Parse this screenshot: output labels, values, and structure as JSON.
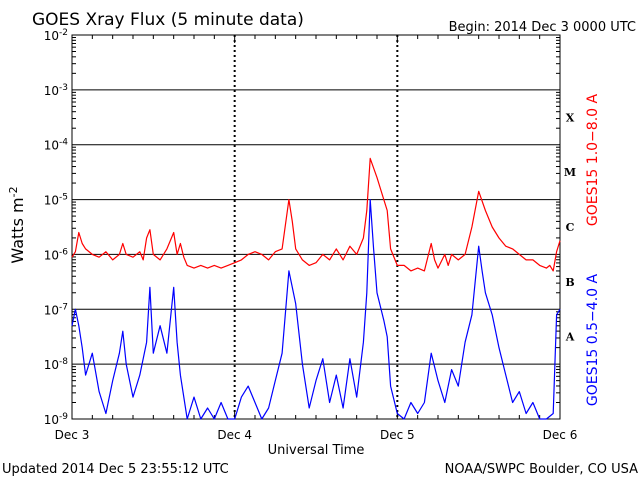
{
  "chart_data": {
    "type": "line",
    "title": "GOES Xray Flux (5 minute data)",
    "begin_label": "Begin:  2014 Dec 3 0000 UTC",
    "xlabel": "Universal Time",
    "ylabel": "Watts m",
    "ylabel_exp": "-2",
    "x_range_hours": [
      0,
      72
    ],
    "x_ticks": [
      {
        "hour": 0,
        "label": "Dec 3"
      },
      {
        "hour": 24,
        "label": "Dec 4"
      },
      {
        "hour": 48,
        "label": "Dec 5"
      },
      {
        "hour": 72,
        "label": "Dec 6"
      }
    ],
    "y_scale": "log",
    "ylim_exp": [
      -9,
      -2
    ],
    "y_ticks": [
      {
        "exp": -2,
        "label": "10",
        "sup": "-2"
      },
      {
        "exp": -3,
        "label": "10",
        "sup": "-3"
      },
      {
        "exp": -4,
        "label": "10",
        "sup": "-4"
      },
      {
        "exp": -5,
        "label": "10",
        "sup": "-5"
      },
      {
        "exp": -6,
        "label": "10",
        "sup": "-6"
      },
      {
        "exp": -7,
        "label": "10",
        "sup": "-7"
      },
      {
        "exp": -8,
        "label": "10",
        "sup": "-8"
      },
      {
        "exp": -9,
        "label": "10",
        "sup": "-9"
      }
    ],
    "flare_classes": [
      {
        "label": "X",
        "exp": -3.5
      },
      {
        "label": "M",
        "exp": -4.5
      },
      {
        "label": "C",
        "exp": -5.5
      },
      {
        "label": "B",
        "exp": -6.5
      },
      {
        "label": "A",
        "exp": -7.5
      }
    ],
    "series": [
      {
        "name": "GOES15 1.0−8.0 A",
        "color": "#ff0000",
        "points": [
          [
            0,
            -6.05
          ],
          [
            0.5,
            -5.95
          ],
          [
            1,
            -5.6
          ],
          [
            1.5,
            -5.8
          ],
          [
            2,
            -5.9
          ],
          [
            3,
            -6.0
          ],
          [
            4,
            -6.05
          ],
          [
            5,
            -5.95
          ],
          [
            6,
            -6.1
          ],
          [
            7,
            -6.0
          ],
          [
            7.5,
            -5.8
          ],
          [
            8,
            -6.0
          ],
          [
            9,
            -6.05
          ],
          [
            10,
            -5.95
          ],
          [
            10.5,
            -6.1
          ],
          [
            11,
            -5.7
          ],
          [
            11.5,
            -5.55
          ],
          [
            12,
            -6.0
          ],
          [
            13,
            -6.1
          ],
          [
            14,
            -5.9
          ],
          [
            15,
            -5.6
          ],
          [
            15.5,
            -6.0
          ],
          [
            16,
            -5.8
          ],
          [
            16.5,
            -6.05
          ],
          [
            17,
            -6.2
          ],
          [
            18,
            -6.25
          ],
          [
            19,
            -6.2
          ],
          [
            20,
            -6.25
          ],
          [
            21,
            -6.2
          ],
          [
            22,
            -6.25
          ],
          [
            23,
            -6.2
          ],
          [
            24,
            -6.15
          ],
          [
            25,
            -6.1
          ],
          [
            26,
            -6.0
          ],
          [
            27,
            -5.95
          ],
          [
            28,
            -6.0
          ],
          [
            29,
            -6.1
          ],
          [
            30,
            -5.95
          ],
          [
            31,
            -5.9
          ],
          [
            32,
            -5.0
          ],
          [
            32.5,
            -5.4
          ],
          [
            33,
            -5.9
          ],
          [
            34,
            -6.1
          ],
          [
            35,
            -6.2
          ],
          [
            36,
            -6.15
          ],
          [
            37,
            -6.0
          ],
          [
            38,
            -6.1
          ],
          [
            39,
            -5.9
          ],
          [
            40,
            -6.1
          ],
          [
            41,
            -5.85
          ],
          [
            42,
            -6.0
          ],
          [
            43,
            -5.7
          ],
          [
            43.5,
            -5.2
          ],
          [
            44,
            -4.25
          ],
          [
            45,
            -4.6
          ],
          [
            46,
            -5.0
          ],
          [
            46.5,
            -5.2
          ],
          [
            47,
            -5.9
          ],
          [
            48,
            -6.2
          ],
          [
            49,
            -6.2
          ],
          [
            50,
            -6.3
          ],
          [
            51,
            -6.25
          ],
          [
            52,
            -6.3
          ],
          [
            53,
            -5.8
          ],
          [
            53.5,
            -6.1
          ],
          [
            54,
            -6.25
          ],
          [
            55,
            -6.0
          ],
          [
            55.5,
            -6.2
          ],
          [
            56,
            -6.0
          ],
          [
            57,
            -6.1
          ],
          [
            58,
            -6.0
          ],
          [
            59,
            -5.5
          ],
          [
            60,
            -4.85
          ],
          [
            61,
            -5.2
          ],
          [
            62,
            -5.5
          ],
          [
            63,
            -5.7
          ],
          [
            64,
            -5.85
          ],
          [
            65,
            -5.9
          ],
          [
            66,
            -6.0
          ],
          [
            67,
            -6.1
          ],
          [
            68,
            -6.1
          ],
          [
            69,
            -6.2
          ],
          [
            70,
            -6.25
          ],
          [
            70.5,
            -6.2
          ],
          [
            71,
            -6.3
          ],
          [
            71.5,
            -5.95
          ],
          [
            72,
            -5.75
          ]
        ]
      },
      {
        "name": "GOES15 0.5−4.0 A",
        "color": "#0000ff",
        "points": [
          [
            0,
            -7.3
          ],
          [
            0.5,
            -7.0
          ],
          [
            1,
            -7.3
          ],
          [
            1.5,
            -7.7
          ],
          [
            2,
            -8.2
          ],
          [
            3,
            -7.8
          ],
          [
            4,
            -8.5
          ],
          [
            5,
            -8.9
          ],
          [
            6,
            -8.3
          ],
          [
            7,
            -7.8
          ],
          [
            7.5,
            -7.4
          ],
          [
            8,
            -8.0
          ],
          [
            9,
            -8.6
          ],
          [
            10,
            -8.2
          ],
          [
            11,
            -7.6
          ],
          [
            11.5,
            -6.6
          ],
          [
            12,
            -7.8
          ],
          [
            13,
            -7.3
          ],
          [
            14,
            -7.8
          ],
          [
            15,
            -6.6
          ],
          [
            15.5,
            -7.6
          ],
          [
            16,
            -8.2
          ],
          [
            17,
            -9.0
          ],
          [
            18,
            -8.6
          ],
          [
            19,
            -9.0
          ],
          [
            20,
            -8.8
          ],
          [
            21,
            -9.0
          ],
          [
            22,
            -8.7
          ],
          [
            23,
            -9.0
          ],
          [
            24,
            -9.0
          ],
          [
            25,
            -8.6
          ],
          [
            26,
            -8.4
          ],
          [
            27,
            -8.7
          ],
          [
            28,
            -9.0
          ],
          [
            29,
            -8.8
          ],
          [
            30,
            -8.3
          ],
          [
            31,
            -7.8
          ],
          [
            32,
            -6.3
          ],
          [
            33,
            -6.9
          ],
          [
            34,
            -8.0
          ],
          [
            35,
            -8.8
          ],
          [
            36,
            -8.3
          ],
          [
            37,
            -7.9
          ],
          [
            38,
            -8.7
          ],
          [
            39,
            -8.2
          ],
          [
            40,
            -8.8
          ],
          [
            41,
            -7.9
          ],
          [
            42,
            -8.6
          ],
          [
            43,
            -7.6
          ],
          [
            43.5,
            -6.7
          ],
          [
            44,
            -5.0
          ],
          [
            44.5,
            -5.9
          ],
          [
            45,
            -6.7
          ],
          [
            46,
            -7.2
          ],
          [
            46.5,
            -7.5
          ],
          [
            47,
            -8.4
          ],
          [
            48,
            -8.9
          ],
          [
            49,
            -9.0
          ],
          [
            50,
            -8.7
          ],
          [
            51,
            -8.9
          ],
          [
            52,
            -8.7
          ],
          [
            53,
            -7.8
          ],
          [
            54,
            -8.3
          ],
          [
            55,
            -8.7
          ],
          [
            56,
            -8.1
          ],
          [
            57,
            -8.4
          ],
          [
            58,
            -7.6
          ],
          [
            59,
            -7.1
          ],
          [
            60,
            -5.85
          ],
          [
            60.5,
            -6.3
          ],
          [
            61,
            -6.7
          ],
          [
            62,
            -7.1
          ],
          [
            63,
            -7.7
          ],
          [
            64,
            -8.2
          ],
          [
            65,
            -8.7
          ],
          [
            66,
            -8.5
          ],
          [
            67,
            -8.9
          ],
          [
            68,
            -8.7
          ],
          [
            69,
            -9.0
          ],
          [
            70,
            -9.0
          ],
          [
            71,
            -8.9
          ],
          [
            71.5,
            -7.1
          ],
          [
            72,
            -7.0
          ]
        ]
      }
    ],
    "footer_updated": "Updated 2014 Dec  5 23:55:12 UTC",
    "footer_source": "NOAA/SWPC Boulder, CO USA"
  }
}
